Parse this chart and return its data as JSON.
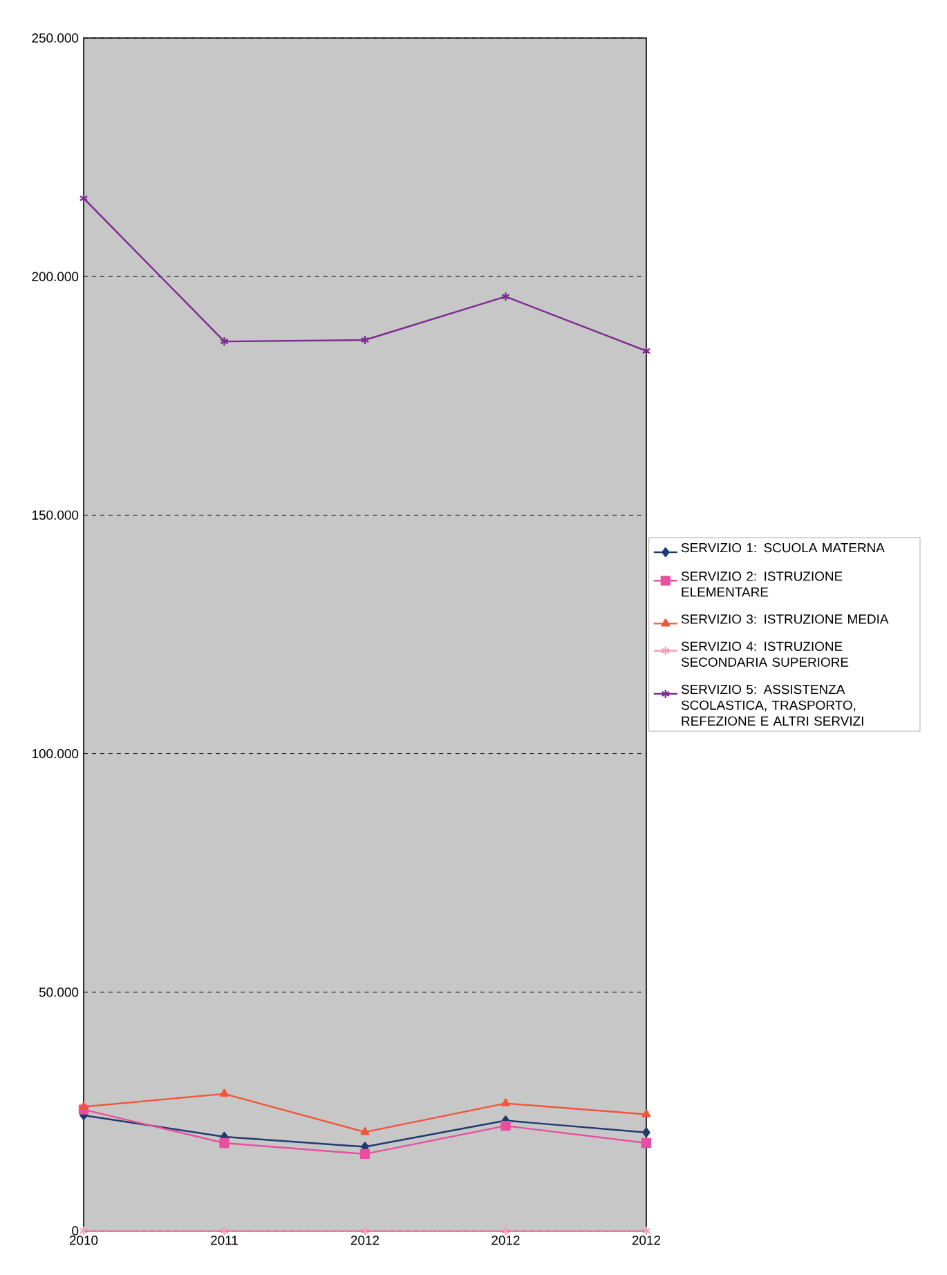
{
  "chart_data": {
    "type": "line",
    "categories": [
      "2010",
      "2011",
      "2012",
      "2012",
      "2012"
    ],
    "series": [
      {
        "name": "SERVIZIO 1: SCUOLA MATERNA",
        "color": "#1f3a6e",
        "marker": "diamond",
        "values": [
          24200,
          19700,
          17600,
          23100,
          20600
        ]
      },
      {
        "name": "SERVIZIO 2: ISTRUZIONE ELEMENTARE",
        "color": "#e84fa0",
        "marker": "square",
        "values": [
          25400,
          18400,
          16100,
          22000,
          18400
        ]
      },
      {
        "name": "SERVIZIO 3: ISTRUZIONE MEDIA",
        "color": "#f0553a",
        "marker": "triangle",
        "values": [
          26000,
          28700,
          20700,
          26700,
          24400
        ]
      },
      {
        "name": "SERVIZIO 4: ISTRUZIONE SECONDARIA SUPERIORE",
        "color": "#f4a0b4",
        "marker": "cross",
        "values": [
          0,
          0,
          0,
          0,
          0
        ]
      },
      {
        "name": "SERVIZIO 5: ASSISTENZA SCOLASTICA, TRASPORTO, REFEZIONE E ALTRI SERVIZI",
        "color": "#7d2b8f",
        "marker": "cross",
        "values": [
          216400,
          186400,
          186700,
          195800,
          184400
        ]
      }
    ],
    "ylim": [
      0,
      250000
    ],
    "yticks": [
      0,
      {
        "value": 50000,
        "label": "50.000"
      },
      {
        "value": 100000,
        "label": "100.000"
      },
      {
        "value": 150000,
        "label": "150.000"
      },
      {
        "value": 200000,
        "label": "200.000"
      },
      {
        "value": 250000,
        "label": "250.000"
      }
    ],
    "grid": "y",
    "legend": "right",
    "line_style": "solid"
  }
}
